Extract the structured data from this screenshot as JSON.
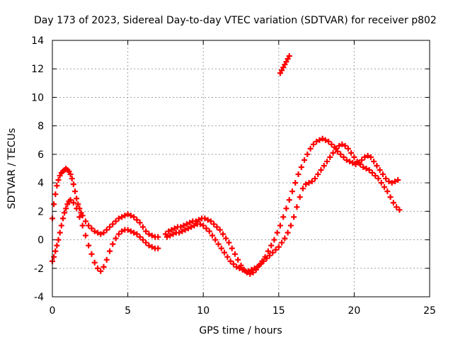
{
  "chart_data": {
    "type": "scatter",
    "title": "Day 173 of 2023, Sidereal Day-to-day VTEC variation (SDTVAR) for receiver p802",
    "xlabel": "GPS time / hours",
    "ylabel": "SDTVAR / TECUs",
    "xlim": [
      0,
      25
    ],
    "ylim": [
      -4,
      14
    ],
    "xticks": [
      0,
      5,
      10,
      15,
      20,
      25
    ],
    "yticks": [
      -4,
      -2,
      0,
      2,
      4,
      6,
      8,
      10,
      12,
      14
    ],
    "xtick_labels": [
      "0",
      "5",
      "10",
      "15",
      "20",
      "25"
    ],
    "ytick_labels": [
      "-4",
      "-2",
      "0",
      "2",
      "4",
      "6",
      "8",
      "10",
      "12",
      "14"
    ],
    "grid": true,
    "marker": "plus",
    "color": "#ff0000",
    "series": [
      {
        "name": "p802-track-a",
        "x": [
          0.0,
          0.1,
          0.2,
          0.3,
          0.4,
          0.5,
          0.6,
          0.7,
          0.8,
          0.9,
          1.0,
          1.1,
          1.2,
          1.3,
          1.4,
          1.5,
          1.6,
          1.7,
          1.8,
          1.9,
          2.0,
          2.2,
          2.4,
          2.6,
          2.8,
          3.0,
          3.2,
          3.4,
          3.6,
          3.8,
          4.0,
          4.2,
          4.4,
          4.6,
          4.8,
          5.0,
          5.2,
          5.4,
          5.6,
          5.8,
          6.0,
          6.2,
          6.4,
          6.6,
          6.8,
          7.0,
          7.5,
          7.7,
          7.9,
          8.1,
          8.3,
          8.5,
          8.7,
          8.9,
          9.1,
          9.3,
          9.5,
          9.7,
          9.9,
          10.1,
          10.3,
          10.5,
          10.7,
          10.9,
          11.1,
          11.3,
          11.5,
          11.7,
          11.9,
          12.1,
          12.3,
          12.5,
          12.7,
          12.9,
          13.1,
          13.3,
          13.5,
          13.7,
          13.9,
          14.1,
          14.3,
          14.5,
          14.7,
          14.9,
          15.1,
          15.3,
          15.5,
          15.7,
          15.9,
          16.1,
          16.3,
          16.5,
          16.7,
          16.9,
          17.1,
          17.3,
          17.5,
          17.7,
          17.9,
          18.1,
          18.3,
          18.5,
          18.7,
          18.9,
          19.1,
          19.3,
          19.5,
          19.7,
          19.9,
          20.1,
          20.3,
          20.5,
          20.7,
          20.9,
          21.1,
          21.3,
          21.5,
          21.7,
          21.9,
          22.1,
          22.3,
          22.5,
          22.7,
          22.9
        ],
        "y": [
          1.5,
          2.5,
          3.2,
          3.8,
          4.2,
          4.5,
          4.7,
          4.8,
          4.9,
          5.0,
          4.9,
          4.8,
          4.6,
          4.3,
          3.9,
          3.4,
          2.9,
          2.5,
          2.2,
          1.9,
          1.7,
          1.3,
          1.0,
          0.8,
          0.6,
          0.5,
          0.4,
          0.5,
          0.7,
          0.9,
          1.1,
          1.3,
          1.5,
          1.6,
          1.7,
          1.8,
          1.7,
          1.6,
          1.4,
          1.2,
          0.9,
          0.6,
          0.4,
          0.3,
          0.2,
          0.2,
          0.4,
          0.6,
          0.7,
          0.8,
          0.9,
          0.9,
          1.0,
          1.1,
          1.2,
          1.3,
          1.3,
          1.4,
          1.5,
          1.5,
          1.4,
          1.3,
          1.1,
          0.9,
          0.7,
          0.4,
          0.1,
          -0.2,
          -0.6,
          -1.0,
          -1.4,
          -1.8,
          -2.1,
          -2.3,
          -2.4,
          -2.3,
          -2.1,
          -1.8,
          -1.5,
          -1.2,
          -0.8,
          -0.4,
          0.0,
          0.5,
          1.0,
          1.6,
          2.2,
          2.8,
          3.4,
          4.0,
          4.6,
          5.1,
          5.6,
          6.0,
          6.4,
          6.7,
          6.9,
          7.0,
          7.1,
          7.0,
          6.9,
          6.7,
          6.5,
          6.2,
          6.0,
          5.8,
          5.6,
          5.5,
          5.4,
          5.3,
          5.4,
          5.6,
          5.8,
          5.9,
          5.8,
          5.5,
          5.2,
          4.9,
          4.6,
          4.3,
          4.1,
          4.0,
          4.1,
          4.2
        ]
      },
      {
        "name": "p802-track-b",
        "x": [
          0.0,
          0.1,
          0.2,
          0.3,
          0.4,
          0.5,
          0.6,
          0.7,
          0.8,
          0.9,
          1.0,
          1.1,
          1.2,
          1.4,
          1.6,
          1.8,
          2.0,
          2.2,
          2.4,
          2.6,
          2.8,
          3.0,
          3.2,
          3.4,
          3.6,
          3.8,
          4.0,
          4.2,
          4.4,
          4.6,
          4.8,
          5.0,
          5.2,
          5.4,
          5.6,
          5.8,
          6.0,
          6.2,
          6.4,
          6.6,
          6.8,
          7.0,
          7.6,
          7.8,
          8.0,
          8.2,
          8.4,
          8.6,
          8.8,
          9.0,
          9.2,
          9.4,
          9.6,
          9.8,
          10.0,
          10.2,
          10.4,
          10.6,
          10.8,
          11.0,
          11.2,
          11.4,
          11.6,
          11.8,
          12.0,
          12.2,
          12.4,
          12.6,
          12.8,
          13.0,
          13.2,
          13.4,
          13.6,
          13.8,
          14.0,
          14.2,
          14.4,
          14.6,
          14.8,
          15.0,
          15.2,
          15.4,
          15.6,
          15.8,
          16.0,
          16.2,
          16.4,
          16.6,
          16.8,
          17.0,
          17.2,
          17.4,
          17.6,
          17.8,
          18.0,
          18.2,
          18.4,
          18.6,
          18.8,
          19.0,
          19.2,
          19.4,
          19.6,
          19.8,
          20.0,
          20.2,
          20.4,
          20.6,
          20.8,
          21.0,
          21.2,
          21.4,
          21.6,
          21.8,
          22.0,
          22.2,
          22.4,
          22.6,
          22.8,
          23.0
        ],
        "y": [
          -1.5,
          -1.2,
          -0.8,
          -0.4,
          0.0,
          0.5,
          1.0,
          1.5,
          1.9,
          2.2,
          2.5,
          2.7,
          2.8,
          2.6,
          2.2,
          1.6,
          1.0,
          0.3,
          -0.4,
          -1.0,
          -1.6,
          -2.0,
          -2.2,
          -1.9,
          -1.4,
          -0.8,
          -0.3,
          0.1,
          0.4,
          0.6,
          0.7,
          0.7,
          0.6,
          0.5,
          0.4,
          0.2,
          0.0,
          -0.2,
          -0.4,
          -0.5,
          -0.6,
          -0.6,
          0.2,
          0.3,
          0.4,
          0.5,
          0.5,
          0.6,
          0.7,
          0.8,
          0.9,
          1.0,
          1.1,
          1.1,
          1.0,
          0.8,
          0.6,
          0.3,
          0.0,
          -0.3,
          -0.6,
          -0.9,
          -1.2,
          -1.5,
          -1.7,
          -1.9,
          -2.0,
          -2.1,
          -2.2,
          -2.2,
          -2.1,
          -2.0,
          -1.9,
          -1.7,
          -1.5,
          -1.3,
          -1.1,
          -0.9,
          -0.7,
          -0.5,
          -0.2,
          0.1,
          0.5,
          1.0,
          1.6,
          2.3,
          3.0,
          3.6,
          3.9,
          4.0,
          4.1,
          4.3,
          4.6,
          4.9,
          5.2,
          5.5,
          5.8,
          6.1,
          6.4,
          6.6,
          6.7,
          6.6,
          6.4,
          6.1,
          5.8,
          5.5,
          5.3,
          5.1,
          5.0,
          4.9,
          4.7,
          4.5,
          4.3,
          4.0,
          3.7,
          3.4,
          3.0,
          2.6,
          2.3,
          2.1
        ]
      },
      {
        "name": "p802-track-c",
        "x": [
          15.1,
          15.2,
          15.3,
          15.4,
          15.5,
          15.6,
          15.7
        ],
        "y": [
          11.7,
          11.9,
          12.1,
          12.3,
          12.5,
          12.7,
          12.9
        ]
      }
    ]
  }
}
